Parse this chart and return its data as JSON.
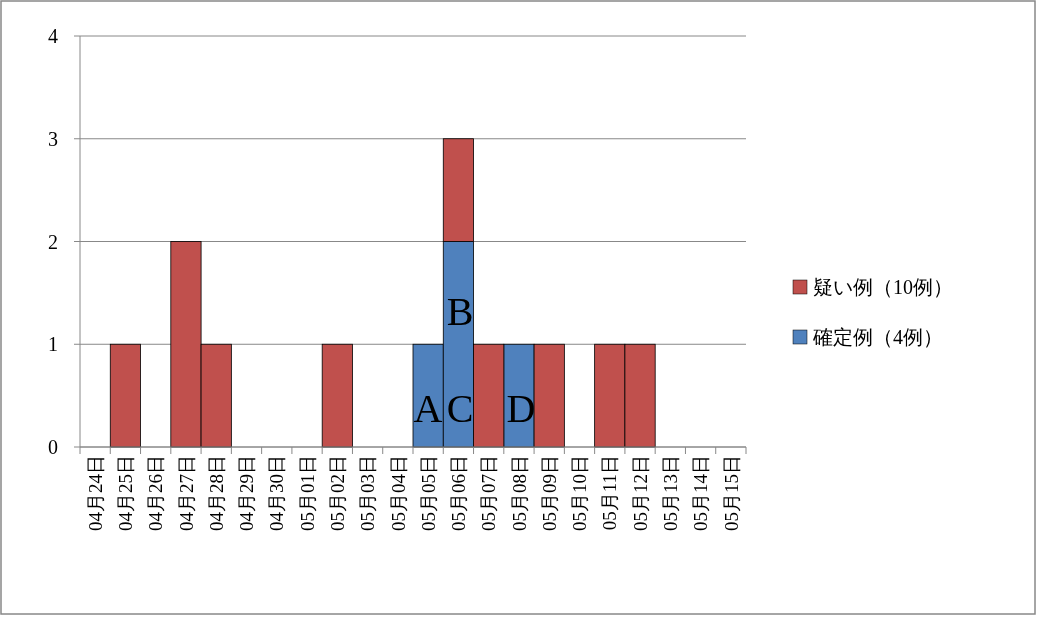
{
  "chart_data": {
    "type": "bar",
    "stacked": true,
    "categories": [
      "04月24日",
      "04月25日",
      "04月26日",
      "04月27日",
      "04月28日",
      "04月29日",
      "04月30日",
      "05月01日",
      "05月02日",
      "05月03日",
      "05月04日",
      "05月05日",
      "05月06日",
      "05月07日",
      "05月08日",
      "05月09日",
      "05月10日",
      "05月11日",
      "05月12日",
      "05月13日",
      "05月14日",
      "05月15日"
    ],
    "series": [
      {
        "name": "確定例（4例）",
        "color": "#4f81bd",
        "values": [
          0,
          0,
          0,
          0,
          0,
          0,
          0,
          0,
          0,
          0,
          0,
          1,
          2,
          0,
          1,
          0,
          0,
          0,
          0,
          0,
          0,
          0
        ]
      },
      {
        "name": "疑い例（10例）",
        "color": "#c0504d",
        "values": [
          0,
          1,
          0,
          2,
          1,
          0,
          0,
          0,
          1,
          0,
          0,
          0,
          1,
          1,
          0,
          1,
          0,
          1,
          1,
          0,
          0,
          0
        ]
      }
    ],
    "ylim": [
      0,
      4
    ],
    "yticks": [
      0,
      1,
      2,
      3,
      4
    ],
    "grid": "y",
    "legend": "right",
    "annotations": [
      "A",
      "C",
      "B",
      "D"
    ]
  }
}
